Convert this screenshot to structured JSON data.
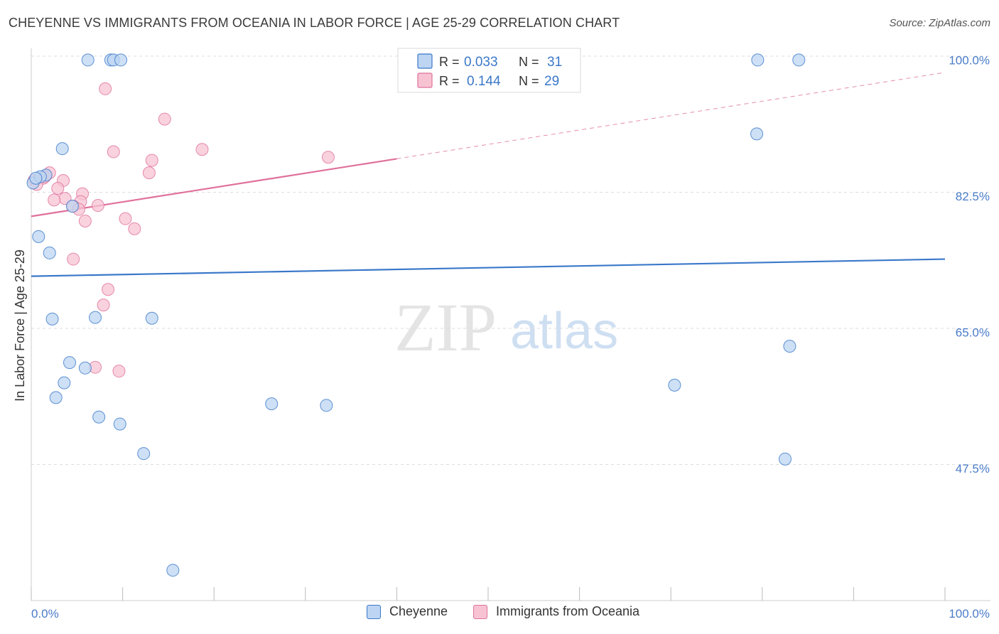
{
  "title": "CHEYENNE VS IMMIGRANTS FROM OCEANIA IN LABOR FORCE | AGE 25-29 CORRELATION CHART",
  "source": "Source: ZipAtlas.com",
  "watermark": {
    "zip": "ZIP",
    "atlas": "atlas"
  },
  "colors": {
    "blue": "#3a78c9",
    "blue_fill": "#bdd5f2",
    "pink": "#e0709a",
    "pink_fill": "#f7c3d3",
    "tick_label": "#4a7cc9",
    "grid": "#dddddd"
  },
  "legend_top": {
    "rows": [
      {
        "r_label": "R = ",
        "r_value": "0.033",
        "n_label": "N = ",
        "n_value": "31"
      },
      {
        "r_label": "R = ",
        "r_value": "0.144",
        "n_label": "N = ",
        "n_value": "29"
      }
    ]
  },
  "legend_bottom": [
    "Cheyenne",
    "Immigrants from Oceania"
  ],
  "chart_data": {
    "type": "scatter",
    "title": "CHEYENNE VS IMMIGRANTS FROM OCEANIA IN LABOR FORCE | AGE 25-29 CORRELATION CHART",
    "xlabel": "",
    "ylabel": "In Labor Force | Age 25-29",
    "xlim": [
      0,
      100
    ],
    "ylim": [
      30.5,
      101.5
    ],
    "x_tick_labels": [
      {
        "value": 0,
        "label": "0.0%"
      },
      {
        "value": 100,
        "label": "100.0%"
      }
    ],
    "y_tick_labels": [
      {
        "value": 47.5,
        "label": "47.5%"
      },
      {
        "value": 65.0,
        "label": "65.0%"
      },
      {
        "value": 82.5,
        "label": "82.5%"
      },
      {
        "value": 100.0,
        "label": "100.0%"
      }
    ],
    "y_gridlines": [
      48.0,
      65.5,
      83.0,
      100.5
    ],
    "series": [
      {
        "name": "Cheyenne",
        "color": "#3a78c9",
        "points": [
          [
            0.2,
            84.2
          ],
          [
            1.6,
            85.2
          ],
          [
            0.8,
            77.3
          ],
          [
            2.0,
            75.2
          ],
          [
            3.4,
            88.6
          ],
          [
            6.2,
            100.0
          ],
          [
            8.7,
            100.0
          ],
          [
            9.0,
            100.0
          ],
          [
            9.8,
            100.0
          ],
          [
            4.5,
            81.2
          ],
          [
            2.3,
            66.7
          ],
          [
            7.0,
            66.9
          ],
          [
            13.2,
            66.8
          ],
          [
            4.2,
            61.1
          ],
          [
            5.9,
            60.4
          ],
          [
            3.6,
            58.5
          ],
          [
            2.7,
            56.6
          ],
          [
            7.4,
            54.1
          ],
          [
            9.7,
            53.2
          ],
          [
            12.3,
            49.4
          ],
          [
            26.3,
            55.8
          ],
          [
            32.3,
            55.6
          ],
          [
            15.5,
            34.4
          ],
          [
            70.4,
            58.2
          ],
          [
            79.4,
            90.5
          ],
          [
            83.0,
            63.2
          ],
          [
            79.5,
            100.0
          ],
          [
            84.0,
            100.0
          ],
          [
            82.5,
            48.7
          ],
          [
            1.0,
            85.0
          ],
          [
            0.5,
            84.8
          ]
        ],
        "trend": {
          "x0": 0,
          "y0": 72.2,
          "x1": 100,
          "y1": 74.4
        }
      },
      {
        "name": "Immigrants from Oceania",
        "color": "#e0709a",
        "points": [
          [
            0.3,
            84.5
          ],
          [
            1.3,
            84.8
          ],
          [
            2.0,
            85.5
          ],
          [
            3.5,
            84.5
          ],
          [
            2.9,
            83.5
          ],
          [
            3.7,
            82.2
          ],
          [
            2.5,
            82.0
          ],
          [
            5.6,
            82.8
          ],
          [
            5.4,
            81.8
          ],
          [
            4.6,
            81.2
          ],
          [
            7.3,
            81.3
          ],
          [
            5.2,
            80.8
          ],
          [
            5.9,
            79.3
          ],
          [
            10.3,
            79.6
          ],
          [
            11.3,
            78.3
          ],
          [
            4.6,
            74.4
          ],
          [
            8.4,
            70.5
          ],
          [
            7.9,
            68.5
          ],
          [
            7.0,
            60.5
          ],
          [
            9.6,
            60.0
          ],
          [
            8.1,
            96.3
          ],
          [
            9.0,
            88.2
          ],
          [
            14.6,
            92.4
          ],
          [
            18.7,
            88.5
          ],
          [
            13.2,
            87.1
          ],
          [
            12.9,
            85.5
          ],
          [
            32.5,
            87.5
          ],
          [
            0.6,
            84.0
          ],
          [
            1.5,
            85.0
          ]
        ],
        "trend": {
          "x0": 0,
          "y0": 79.9,
          "x1": 100,
          "y1": 98.4,
          "solid_until": 40
        }
      }
    ]
  }
}
